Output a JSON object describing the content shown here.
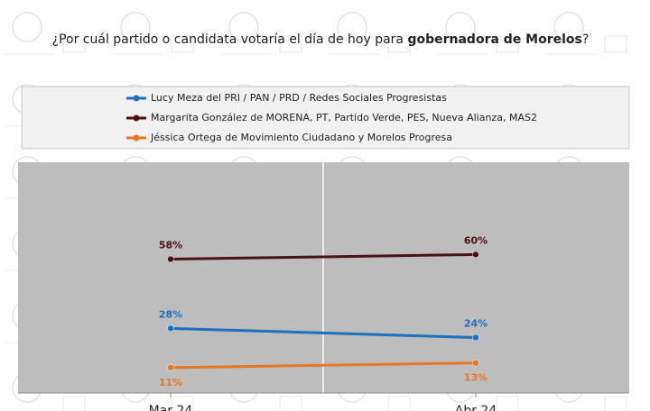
{
  "chart_data": {
    "type": "line",
    "title_parts": [
      "¿Por cuál partido o candidata votaría el día de hoy para ",
      "gobernadora de Morelos",
      "?"
    ],
    "categories": [
      "Mar 24",
      "Abr 24"
    ],
    "ylim": [
      0,
      100
    ],
    "legend": "top",
    "series": [
      {
        "name": "Lucy Meza del PRI / PAN / PRD / Redes Sociales Progresistas",
        "color": "#1f6fbf",
        "values": [
          28,
          24
        ],
        "value_labels": [
          "28%",
          "24%"
        ]
      },
      {
        "name": "Margarita González de MORENA, PT, Partido Verde, PES, Nueva Alianza, MAS2",
        "color": "#4a1212",
        "values": [
          58,
          60
        ],
        "value_labels": [
          "58%",
          "60%"
        ]
      },
      {
        "name": "Jéssica Ortega de Movimiento Ciudadano y Morelos Progresa",
        "color": "#e87722",
        "values": [
          11,
          13
        ],
        "value_labels": [
          "11%",
          "13%"
        ]
      }
    ]
  }
}
